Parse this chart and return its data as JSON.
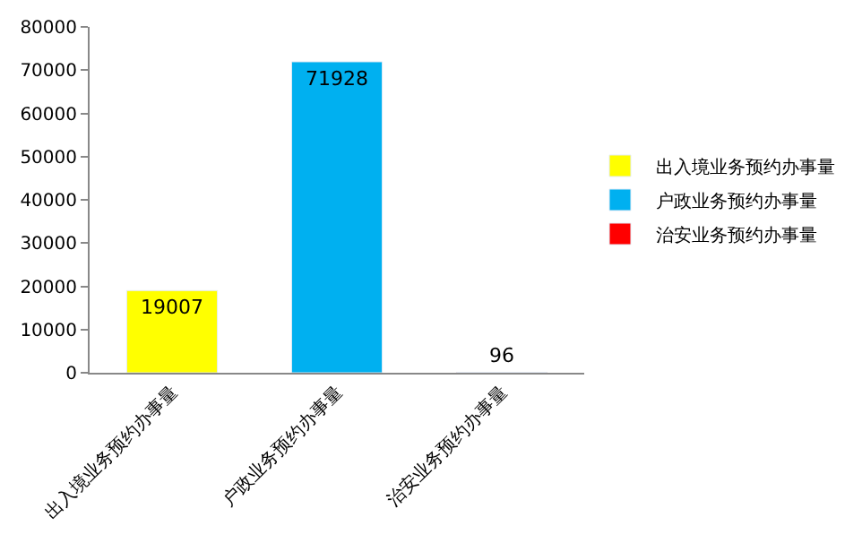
{
  "chart_data": {
    "type": "bar",
    "categories": [
      "出入境业务预约办事量",
      "户政业务预约办事量",
      "治安业务预约办事量"
    ],
    "series": [
      {
        "name": "出入境业务预约办事量",
        "color": "#ffff00",
        "values": [
          19007,
          null,
          null
        ]
      },
      {
        "name": "户政业务预约办事量",
        "color": "#00b0f0",
        "values": [
          null,
          71928,
          null
        ]
      },
      {
        "name": "治安业务预约办事量",
        "color": "#ff0000",
        "values": [
          null,
          null,
          96
        ]
      }
    ],
    "ylim": [
      0,
      80000
    ],
    "yticks": [
      0,
      10000,
      20000,
      30000,
      40000,
      50000,
      60000,
      70000,
      80000
    ],
    "legend": "right",
    "data_labels": true
  }
}
